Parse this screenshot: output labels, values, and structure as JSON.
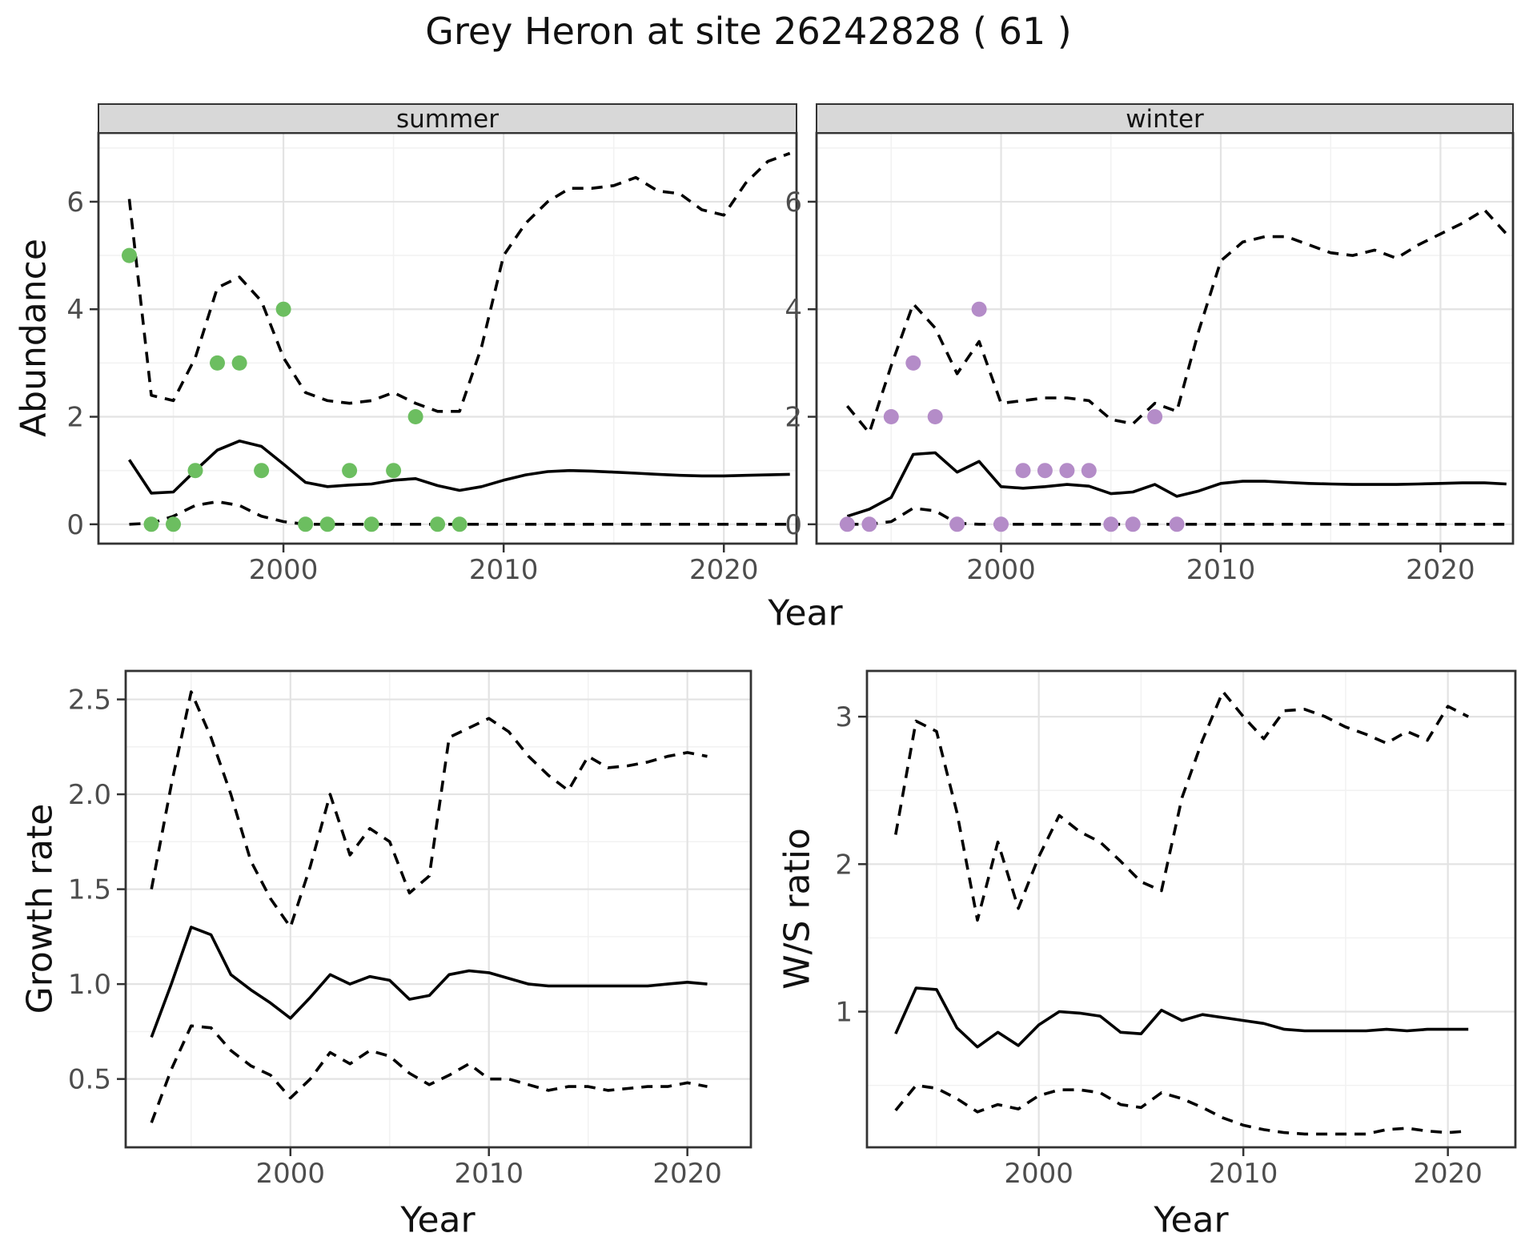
{
  "title": "Grey Heron at site 26242828 ( 61 )",
  "colors": {
    "summer_point": "#6cbe60",
    "winter_point": "#b48cc8",
    "line": "#000000",
    "grid_major": "#e3e3e3",
    "grid_minor": "#f2f2f2",
    "strip_bg": "#d8d8d8",
    "panel_border": "#333333",
    "tick_text": "#4d4d4d"
  },
  "chart_data": [
    {
      "id": "abundance-summer",
      "type": "line",
      "facet_label": "summer",
      "xlabel": "Year",
      "ylabel": "Abundance",
      "xlim": [
        1991.6,
        2023.3
      ],
      "ylim": [
        -0.36,
        7.28
      ],
      "x_ticks": [
        2000,
        2010,
        2020
      ],
      "x_minor": [
        1995,
        2005,
        2015
      ],
      "y_ticks": [
        0,
        2,
        4,
        6
      ],
      "y_minor": [
        1,
        3,
        5,
        7
      ],
      "legend_position": "none",
      "grid": true,
      "series": [
        {
          "name": "upper-95ci",
          "style": "dashed",
          "x": [
            1993,
            1994,
            1995,
            1996,
            1997,
            1998,
            1999,
            2000,
            2001,
            2002,
            2003,
            2004,
            2005,
            2006,
            2007,
            2008,
            2009,
            2010,
            2011,
            2012,
            2013,
            2014,
            2015,
            2016,
            2017,
            2018,
            2019,
            2020,
            2021,
            2022,
            2023
          ],
          "y": [
            6.05,
            2.4,
            2.3,
            3.1,
            4.4,
            4.6,
            4.15,
            3.1,
            2.45,
            2.3,
            2.25,
            2.3,
            2.45,
            2.25,
            2.1,
            2.1,
            3.3,
            5.0,
            5.6,
            6.0,
            6.25,
            6.25,
            6.3,
            6.45,
            6.2,
            6.15,
            5.85,
            5.75,
            6.35,
            6.75,
            6.9
          ]
        },
        {
          "name": "median",
          "style": "solid",
          "x": [
            1993,
            1994,
            1995,
            1996,
            1997,
            1998,
            1999,
            2000,
            2001,
            2002,
            2003,
            2004,
            2005,
            2006,
            2007,
            2008,
            2009,
            2010,
            2011,
            2012,
            2013,
            2014,
            2015,
            2016,
            2017,
            2018,
            2019,
            2020,
            2021,
            2022,
            2023
          ],
          "y": [
            1.2,
            0.58,
            0.6,
            1.0,
            1.38,
            1.55,
            1.45,
            1.12,
            0.78,
            0.7,
            0.73,
            0.75,
            0.82,
            0.85,
            0.72,
            0.63,
            0.7,
            0.82,
            0.92,
            0.98,
            1.0,
            0.99,
            0.97,
            0.95,
            0.93,
            0.91,
            0.9,
            0.9,
            0.91,
            0.92,
            0.93
          ]
        },
        {
          "name": "lower-95ci",
          "style": "dashed",
          "x": [
            1993,
            1994,
            1995,
            1996,
            1997,
            1998,
            1999,
            2000,
            2001,
            2002,
            2003,
            2004,
            2005,
            2006,
            2007,
            2008,
            2009,
            2010,
            2011,
            2012,
            2013,
            2014,
            2015,
            2016,
            2017,
            2018,
            2019,
            2020,
            2021,
            2022,
            2023
          ],
          "y": [
            0,
            0.02,
            0.15,
            0.35,
            0.42,
            0.35,
            0.15,
            0.05,
            0,
            0,
            0,
            0,
            0,
            0,
            0,
            0,
            0,
            0,
            0,
            0,
            0,
            0,
            0,
            0,
            0,
            0,
            0,
            0,
            0,
            0,
            0
          ]
        }
      ],
      "points": {
        "name": "observed-counts-summer",
        "color": "#6cbe60",
        "x": [
          1993,
          1994,
          1995,
          1996,
          1997,
          1998,
          1999,
          2000,
          2001,
          2002,
          2003,
          2004,
          2005,
          2006,
          2007,
          2008
        ],
        "y": [
          5,
          0,
          0,
          1,
          3,
          3,
          1,
          4,
          0,
          0,
          1,
          0,
          1,
          2,
          0,
          0
        ]
      }
    },
    {
      "id": "abundance-winter",
      "type": "line",
      "facet_label": "winter",
      "xlabel": "Year",
      "ylabel": "Abundance",
      "xlim": [
        1991.6,
        2023.3
      ],
      "ylim": [
        -0.36,
        7.28
      ],
      "x_ticks": [
        2000,
        2010,
        2020
      ],
      "x_minor": [
        1995,
        2005,
        2015
      ],
      "y_ticks": [
        0,
        2,
        4,
        6
      ],
      "y_minor": [
        1,
        3,
        5,
        7
      ],
      "legend_position": "none",
      "grid": true,
      "series": [
        {
          "name": "upper-95ci",
          "style": "dashed",
          "x": [
            1993,
            1994,
            1995,
            1996,
            1997,
            1998,
            1999,
            2000,
            2001,
            2002,
            2003,
            2004,
            2005,
            2006,
            2007,
            2008,
            2009,
            2010,
            2011,
            2012,
            2013,
            2014,
            2015,
            2016,
            2017,
            2018,
            2019,
            2020,
            2021,
            2022,
            2023
          ],
          "y": [
            2.2,
            1.7,
            2.95,
            4.1,
            3.65,
            2.8,
            3.4,
            2.25,
            2.3,
            2.35,
            2.35,
            2.3,
            1.95,
            1.87,
            2.25,
            2.1,
            3.6,
            4.9,
            5.25,
            5.35,
            5.35,
            5.2,
            5.05,
            5.0,
            5.1,
            4.95,
            5.2,
            5.4,
            5.6,
            5.85,
            5.4
          ]
        },
        {
          "name": "median",
          "style": "solid",
          "x": [
            1993,
            1994,
            1995,
            1996,
            1997,
            1998,
            1999,
            2000,
            2001,
            2002,
            2003,
            2004,
            2005,
            2006,
            2007,
            2008,
            2009,
            2010,
            2011,
            2012,
            2013,
            2014,
            2015,
            2016,
            2017,
            2018,
            2019,
            2020,
            2021,
            2022,
            2023
          ],
          "y": [
            0.15,
            0.28,
            0.5,
            1.3,
            1.33,
            0.97,
            1.17,
            0.7,
            0.67,
            0.7,
            0.74,
            0.71,
            0.57,
            0.6,
            0.74,
            0.52,
            0.62,
            0.76,
            0.8,
            0.8,
            0.78,
            0.76,
            0.75,
            0.74,
            0.74,
            0.74,
            0.75,
            0.76,
            0.77,
            0.77,
            0.75
          ]
        },
        {
          "name": "lower-95ci",
          "style": "dashed",
          "x": [
            1993,
            1994,
            1995,
            1996,
            1997,
            1998,
            1999,
            2000,
            2001,
            2002,
            2003,
            2004,
            2005,
            2006,
            2007,
            2008,
            2009,
            2010,
            2011,
            2012,
            2013,
            2014,
            2015,
            2016,
            2017,
            2018,
            2019,
            2020,
            2021,
            2022,
            2023
          ],
          "y": [
            0,
            0,
            0.05,
            0.3,
            0.25,
            0.02,
            0,
            0,
            0,
            0,
            0,
            0,
            0,
            0,
            0,
            0,
            0,
            0,
            0,
            0,
            0,
            0,
            0,
            0,
            0,
            0,
            0,
            0,
            0,
            0,
            0
          ]
        }
      ],
      "points": {
        "name": "observed-counts-winter",
        "color": "#b48cc8",
        "x": [
          1993,
          1994,
          1995,
          1996,
          1997,
          1998,
          1999,
          2000,
          2001,
          2002,
          2003,
          2004,
          2005,
          2006,
          2007,
          2008
        ],
        "y": [
          0,
          0,
          2,
          3,
          2,
          0,
          4,
          0,
          1,
          1,
          1,
          1,
          0,
          0,
          2,
          0
        ]
      }
    },
    {
      "id": "growth-rate",
      "type": "line",
      "facet_label": "",
      "xlabel": "Year",
      "ylabel": "Growth rate",
      "xlim": [
        1991.7,
        2023.2
      ],
      "ylim": [
        0.14,
        2.65
      ],
      "x_ticks": [
        2000,
        2010,
        2020
      ],
      "x_minor": [
        1995,
        2005,
        2015
      ],
      "y_ticks": [
        0.5,
        1.0,
        1.5,
        2.0,
        2.5
      ],
      "y_tick_labels": [
        "0.5",
        "1.0",
        "1.5",
        "2.0",
        "2.5"
      ],
      "y_minor": [
        0.75,
        1.25,
        1.75,
        2.25
      ],
      "legend_position": "none",
      "grid": true,
      "series": [
        {
          "name": "upper-95ci",
          "style": "dashed",
          "x": [
            1993,
            1994,
            1995,
            1996,
            1997,
            1998,
            1999,
            2000,
            2001,
            2002,
            2003,
            2004,
            2005,
            2006,
            2007,
            2008,
            2009,
            2010,
            2011,
            2012,
            2013,
            2014,
            2015,
            2016,
            2017,
            2018,
            2019,
            2020,
            2021
          ],
          "y": [
            1.5,
            2.05,
            2.54,
            2.3,
            2.0,
            1.65,
            1.45,
            1.3,
            1.62,
            2.0,
            1.68,
            1.82,
            1.75,
            1.48,
            1.57,
            2.3,
            2.35,
            2.4,
            2.33,
            2.2,
            2.1,
            2.02,
            2.2,
            2.14,
            2.15,
            2.17,
            2.2,
            2.22,
            2.2
          ]
        },
        {
          "name": "median",
          "style": "solid",
          "x": [
            1993,
            1994,
            1995,
            1996,
            1997,
            1998,
            1999,
            2000,
            2001,
            2002,
            2003,
            2004,
            2005,
            2006,
            2007,
            2008,
            2009,
            2010,
            2011,
            2012,
            2013,
            2014,
            2015,
            2016,
            2017,
            2018,
            2019,
            2020,
            2021
          ],
          "y": [
            0.72,
            1.0,
            1.3,
            1.26,
            1.05,
            0.97,
            0.9,
            0.82,
            0.93,
            1.05,
            1.0,
            1.04,
            1.02,
            0.92,
            0.94,
            1.05,
            1.07,
            1.06,
            1.03,
            1.0,
            0.99,
            0.99,
            0.99,
            0.99,
            0.99,
            0.99,
            1.0,
            1.01,
            1.0
          ]
        },
        {
          "name": "lower-95ci",
          "style": "dashed",
          "x": [
            1993,
            1994,
            1995,
            1996,
            1997,
            1998,
            1999,
            2000,
            2001,
            2002,
            2003,
            2004,
            2005,
            2006,
            2007,
            2008,
            2009,
            2010,
            2011,
            2012,
            2013,
            2014,
            2015,
            2016,
            2017,
            2018,
            2019,
            2020,
            2021
          ],
          "y": [
            0.27,
            0.55,
            0.78,
            0.77,
            0.65,
            0.57,
            0.52,
            0.4,
            0.5,
            0.64,
            0.58,
            0.65,
            0.62,
            0.53,
            0.47,
            0.52,
            0.58,
            0.5,
            0.5,
            0.47,
            0.44,
            0.46,
            0.46,
            0.44,
            0.45,
            0.46,
            0.46,
            0.48,
            0.46
          ]
        }
      ],
      "points": null
    },
    {
      "id": "ws-ratio",
      "type": "line",
      "facet_label": "",
      "xlabel": "Year",
      "ylabel": "W/S ratio",
      "xlim": [
        1991.6,
        2023.3
      ],
      "ylim": [
        0.08,
        3.31
      ],
      "x_ticks": [
        2000,
        2010,
        2020
      ],
      "x_minor": [
        1995,
        2005,
        2015
      ],
      "y_ticks": [
        1,
        2,
        3
      ],
      "y_minor": [
        0.5,
        1.5,
        2.5
      ],
      "legend_position": "none",
      "grid": true,
      "series": [
        {
          "name": "upper-95ci",
          "style": "dashed",
          "x": [
            1993,
            1994,
            1995,
            1996,
            1997,
            1998,
            1999,
            2000,
            2001,
            2002,
            2003,
            2004,
            2005,
            2006,
            2007,
            2008,
            2009,
            2010,
            2011,
            2012,
            2013,
            2014,
            2015,
            2016,
            2017,
            2018,
            2019,
            2020,
            2021
          ],
          "y": [
            2.2,
            2.97,
            2.9,
            2.35,
            1.62,
            2.15,
            1.7,
            2.05,
            2.33,
            2.22,
            2.15,
            2.02,
            1.88,
            1.82,
            2.45,
            2.84,
            3.17,
            3.0,
            2.85,
            3.04,
            3.05,
            3.0,
            2.93,
            2.88,
            2.82,
            2.9,
            2.84,
            3.07,
            3.0
          ]
        },
        {
          "name": "median",
          "style": "solid",
          "x": [
            1993,
            1994,
            1995,
            1996,
            1997,
            1998,
            1999,
            2000,
            2001,
            2002,
            2003,
            2004,
            2005,
            2006,
            2007,
            2008,
            2009,
            2010,
            2011,
            2012,
            2013,
            2014,
            2015,
            2016,
            2017,
            2018,
            2019,
            2020,
            2021
          ],
          "y": [
            0.85,
            1.16,
            1.15,
            0.89,
            0.76,
            0.86,
            0.77,
            0.91,
            1.0,
            0.99,
            0.97,
            0.86,
            0.85,
            1.01,
            0.94,
            0.98,
            0.96,
            0.94,
            0.92,
            0.88,
            0.87,
            0.87,
            0.87,
            0.87,
            0.88,
            0.87,
            0.88,
            0.88,
            0.88
          ]
        },
        {
          "name": "lower-95ci",
          "style": "dashed",
          "x": [
            1993,
            1994,
            1995,
            1996,
            1997,
            1998,
            1999,
            2000,
            2001,
            2002,
            2003,
            2004,
            2005,
            2006,
            2007,
            2008,
            2009,
            2010,
            2011,
            2012,
            2013,
            2014,
            2015,
            2016,
            2017,
            2018,
            2019,
            2020,
            2021
          ],
          "y": [
            0.33,
            0.5,
            0.48,
            0.41,
            0.32,
            0.37,
            0.34,
            0.43,
            0.47,
            0.47,
            0.45,
            0.37,
            0.35,
            0.45,
            0.41,
            0.35,
            0.28,
            0.23,
            0.2,
            0.18,
            0.17,
            0.17,
            0.17,
            0.17,
            0.2,
            0.21,
            0.19,
            0.18,
            0.19
          ]
        }
      ],
      "points": null
    }
  ]
}
